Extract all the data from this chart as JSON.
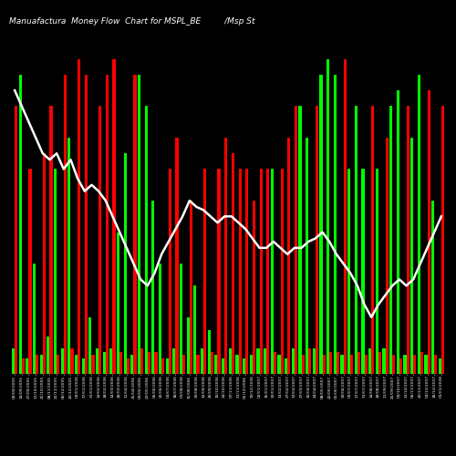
{
  "title": "Manuafactura  Money Flow  Chart for MSPL_BE         /Msp St",
  "background_color": "#000000",
  "line_color": "#ffffff",
  "categories": [
    "02/09/2005",
    "14/09/2005",
    "27/09/2005",
    "11/10/2005",
    "25/10/2005",
    "08/11/2005",
    "22/11/2005",
    "06/12/2005",
    "20/12/2005",
    "03/01/2006",
    "17/01/2006",
    "31/01/2006",
    "14/02/2006",
    "28/02/2006",
    "14/03/2006",
    "28/03/2006",
    "11/04/2006",
    "25/04/2006",
    "09/05/2006",
    "23/05/2006",
    "06/06/2006",
    "20/06/2006",
    "04/07/2006",
    "18/07/2006",
    "01/08/2006",
    "15/08/2006",
    "29/08/2006",
    "12/09/2006",
    "26/09/2006",
    "10/10/2006",
    "24/10/2006",
    "07/11/2006",
    "21/11/2006",
    "05/12/2006",
    "19/12/2006",
    "02/01/2007",
    "16/01/2007",
    "30/01/2007",
    "13/02/2007",
    "27/02/2007",
    "13/03/2007",
    "27/03/2007",
    "10/04/2007",
    "24/04/2007",
    "08/05/2007",
    "22/05/2007",
    "05/06/2007",
    "19/06/2007",
    "03/07/2007",
    "17/07/2007",
    "31/07/2007",
    "14/08/2007",
    "28/08/2007",
    "11/09/2007",
    "25/09/2007",
    "09/10/2007",
    "23/10/2007",
    "06/11/2007",
    "20/11/2007",
    "04/12/2007",
    "18/12/2007",
    "01/01/2008"
  ],
  "green_values": [
    0.8,
    9.5,
    0.5,
    3.5,
    0.6,
    1.2,
    6.5,
    0.8,
    7.5,
    0.6,
    0.5,
    1.8,
    0.8,
    0.7,
    0.8,
    4.5,
    7.0,
    0.6,
    9.5,
    8.5,
    5.5,
    3.5,
    0.5,
    0.8,
    3.5,
    1.8,
    2.8,
    0.8,
    1.4,
    0.6,
    0.5,
    0.8,
    0.6,
    0.5,
    0.6,
    0.8,
    0.8,
    6.5,
    0.6,
    0.5,
    0.8,
    8.5,
    7.5,
    0.8,
    9.5,
    10.0,
    9.5,
    0.6,
    6.5,
    8.5,
    6.5,
    0.8,
    6.5,
    0.8,
    8.5,
    9.0,
    0.6,
    7.5,
    9.5,
    0.6,
    5.5,
    0.5
  ],
  "red_values": [
    8.5,
    0.5,
    6.5,
    0.6,
    7.0,
    8.5,
    0.6,
    9.5,
    0.8,
    10.0,
    9.5,
    0.6,
    8.5,
    9.5,
    10.0,
    0.7,
    0.5,
    9.5,
    0.8,
    0.7,
    0.7,
    0.5,
    6.5,
    7.5,
    0.6,
    5.5,
    0.6,
    6.5,
    0.7,
    6.5,
    7.5,
    7.0,
    6.5,
    6.5,
    5.5,
    6.5,
    6.5,
    0.7,
    6.5,
    7.5,
    8.5,
    0.6,
    0.8,
    8.5,
    0.6,
    0.7,
    0.7,
    10.0,
    0.6,
    0.7,
    0.6,
    8.5,
    0.7,
    7.5,
    0.6,
    0.5,
    8.5,
    0.6,
    0.7,
    9.0,
    0.6,
    8.5
  ],
  "line_values": [
    9.0,
    8.5,
    8.0,
    7.5,
    7.0,
    6.8,
    7.0,
    6.5,
    6.8,
    6.2,
    5.8,
    6.0,
    5.8,
    5.5,
    5.0,
    4.5,
    4.0,
    3.5,
    3.0,
    2.8,
    3.2,
    3.8,
    4.2,
    4.6,
    5.0,
    5.5,
    5.3,
    5.2,
    5.0,
    4.8,
    5.0,
    5.0,
    4.8,
    4.6,
    4.3,
    4.0,
    4.0,
    4.2,
    4.0,
    3.8,
    4.0,
    4.0,
    4.2,
    4.3,
    4.5,
    4.2,
    3.8,
    3.5,
    3.2,
    2.8,
    2.2,
    1.8,
    2.2,
    2.5,
    2.8,
    3.0,
    2.8,
    3.0,
    3.5,
    4.0,
    4.5,
    5.0
  ],
  "green_color": "#00ff00",
  "red_color": "#ff0000",
  "title_color": "#ffffff",
  "xlabel_color": "#ffffff",
  "ylim": [
    0,
    11
  ],
  "bar_width": 0.4
}
